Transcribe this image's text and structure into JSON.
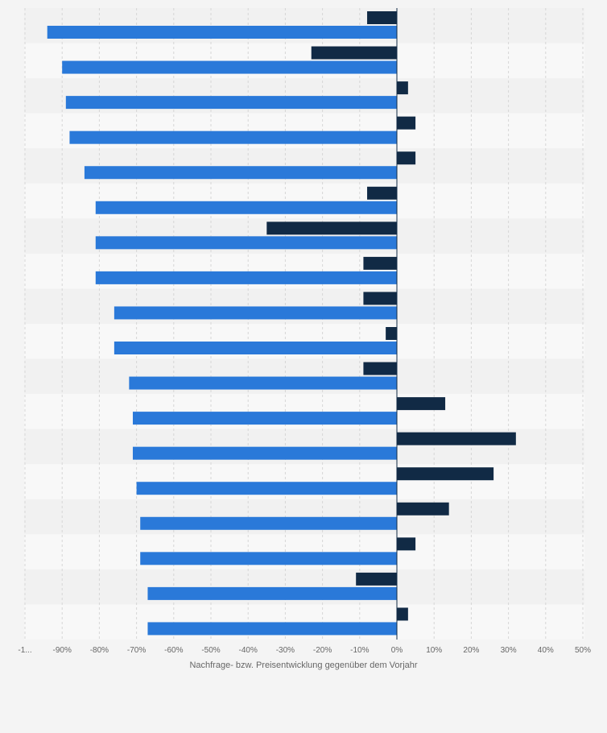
{
  "chart_data": {
    "type": "bar",
    "orientation": "horizontal",
    "title": "",
    "xlabel": "Nachfrage- bzw. Preisentwicklung gegenüber dem Vorjahr",
    "ylabel": "",
    "xlim": [
      -100,
      50
    ],
    "x_ticks": [
      "-1...",
      "-90%",
      "-80%",
      "-70%",
      "-60%",
      "-50%",
      "-40%",
      "-30%",
      "-20%",
      "-10%",
      "0%",
      "10%",
      "20%",
      "30%",
      "40%",
      "50%"
    ],
    "x_tick_values": [
      -100,
      -90,
      -80,
      -70,
      -60,
      -50,
      -40,
      -30,
      -20,
      -10,
      0,
      10,
      20,
      30,
      40,
      50
    ],
    "categories": [
      "",
      "",
      "",
      "",
      "",
      "",
      "",
      "",
      "",
      "",
      "",
      "",
      "",
      "",
      "",
      "",
      "",
      ""
    ],
    "series": [
      {
        "color": "#112a45",
        "values": [
          -8,
          -23,
          3,
          5,
          5,
          -8,
          -35,
          -9,
          -9,
          -3,
          -9,
          13,
          32,
          26,
          14,
          5,
          -11,
          3
        ]
      },
      {
        "color": "#2a79d9",
        "values": [
          -94,
          -90,
          -89,
          -88,
          -84,
          -81,
          -81,
          -81,
          -76,
          -76,
          -72,
          -71,
          -71,
          -70,
          -69,
          -69,
          -67,
          -67
        ]
      }
    ],
    "grid": true,
    "legend": "none"
  }
}
